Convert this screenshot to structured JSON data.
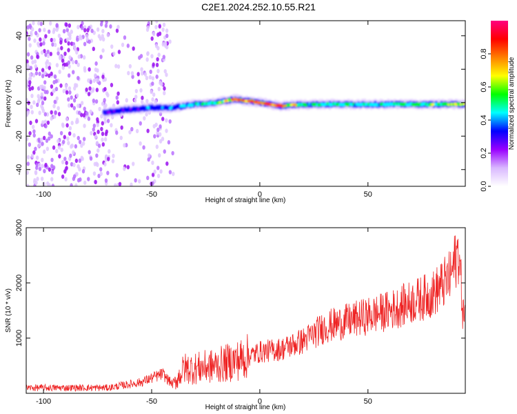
{
  "title": "C2E1.2024.252.10.55.R21",
  "chart_data": [
    {
      "type": "heatmap",
      "xlabel": "Height of straight line (km)",
      "ylabel": "Frequency (Hz)",
      "xlim": [
        -108,
        95
      ],
      "ylim": [
        -50,
        49
      ],
      "x_ticks": [
        -100,
        -50,
        0,
        50
      ],
      "y_ticks": [
        -40,
        -20,
        0,
        20,
        40
      ],
      "colorbar": {
        "label": "Normalized spectral amplitude",
        "range": [
          0,
          1
        ],
        "ticks": [
          "0.0",
          "0.2",
          "0.4",
          "0.6",
          "0.8"
        ],
        "colors": [
          "#ffffff",
          "#d9b8ff",
          "#9900ff",
          "#0000ff",
          "#00ffff",
          "#00ff00",
          "#ffff00",
          "#ff8000",
          "#ff0000",
          "#ff0080"
        ]
      },
      "signal_ridge": {
        "x": [
          -72,
          -60,
          -50,
          -40,
          -30,
          -20,
          -12,
          -5,
          0,
          5,
          10,
          20,
          40,
          60,
          80,
          95
        ],
        "y": [
          -6,
          -4,
          -3,
          -3,
          -1,
          0,
          2,
          1,
          0,
          -1,
          -2,
          -1,
          -1,
          -1,
          -1,
          -1
        ],
        "peak_amplitude": [
          0.3,
          0.4,
          0.45,
          0.5,
          0.55,
          0.65,
          0.9,
          0.8,
          0.95,
          0.85,
          0.9,
          0.6,
          0.6,
          0.6,
          0.7,
          0.8
        ]
      },
      "noise_region_x": [
        -108,
        -40
      ]
    },
    {
      "type": "line",
      "xlabel": "Height of straight line (km)",
      "ylabel": "SNR (10 * v/v)",
      "xlim": [
        -108,
        95
      ],
      "ylim": [
        0,
        3000
      ],
      "x_ticks": [
        -100,
        -50,
        0,
        50
      ],
      "y_ticks": [
        1000,
        2000,
        3000
      ],
      "color": "#ee2222",
      "trend": {
        "x": [
          -108,
          -90,
          -70,
          -55,
          -45,
          -40,
          -35,
          -30,
          -20,
          -10,
          0,
          10,
          20,
          30,
          40,
          50,
          60,
          70,
          80,
          88,
          92,
          94,
          95
        ],
        "y": [
          100,
          100,
          100,
          200,
          350,
          150,
          450,
          450,
          500,
          600,
          750,
          800,
          950,
          1200,
          1300,
          1400,
          1500,
          1650,
          1800,
          2100,
          2600,
          1400,
          1600
        ]
      }
    }
  ]
}
